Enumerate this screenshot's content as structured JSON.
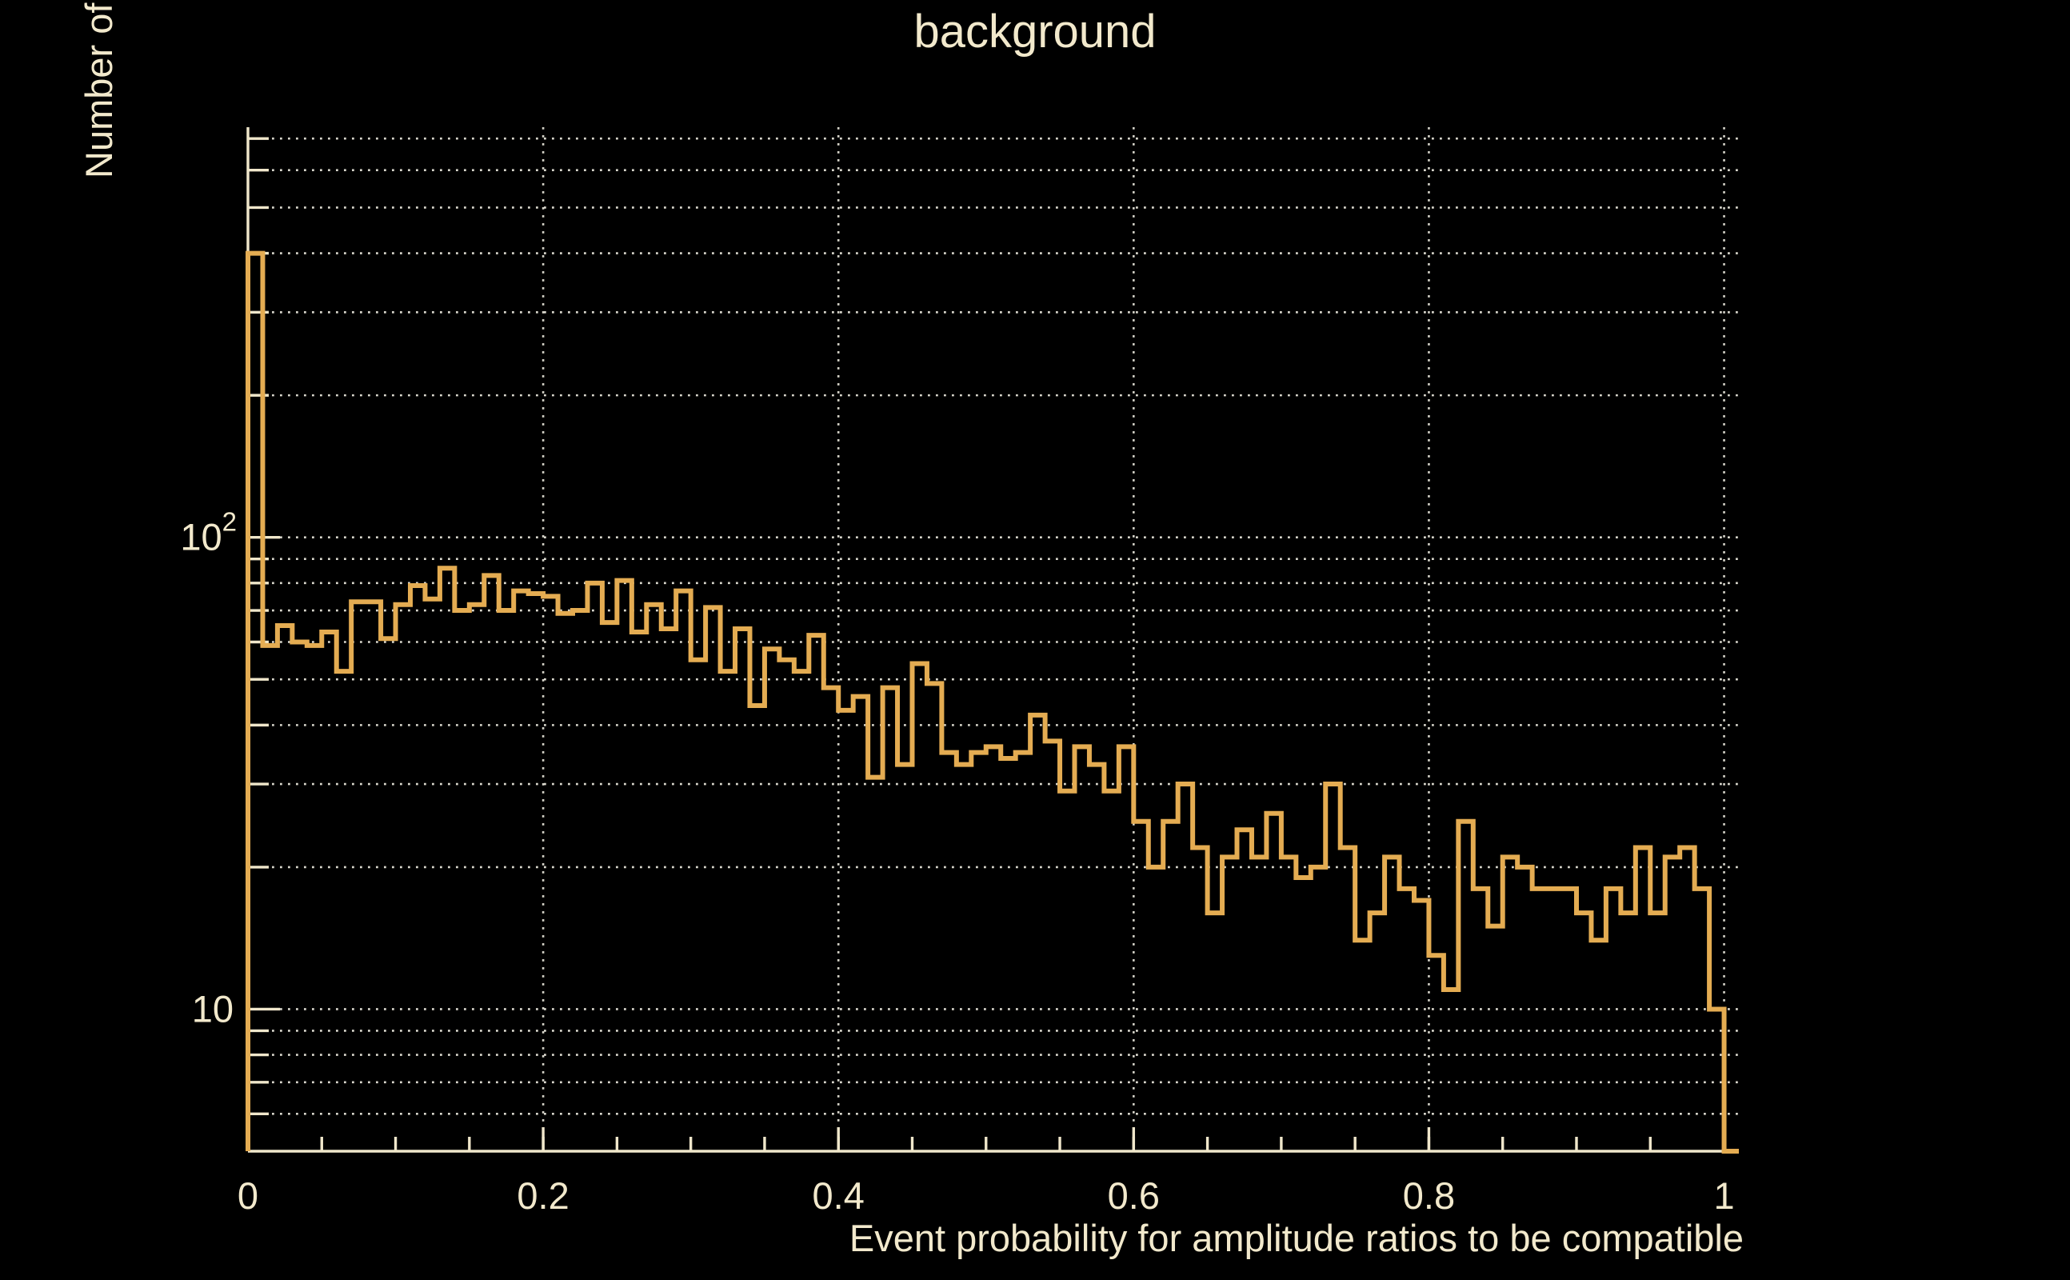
{
  "window": {
    "background_color": "#000000"
  },
  "header": {
    "title": "background"
  },
  "colors": {
    "background": "#000000",
    "text": "#F2E9CC",
    "axis": "#F0E7CB",
    "grid": "#EFEDE2",
    "histogram_line": "#E4AC52"
  },
  "chart_data": {
    "type": "bar",
    "subtype": "step-histogram",
    "title": "background",
    "xlabel": "Event probability for amplitude ratios to be compatible",
    "ylabel": "Number of events",
    "x_scale": "linear",
    "y_scale": "log",
    "xlim": [
      0,
      1.01
    ],
    "ylim": [
      5,
      740
    ],
    "grid": "on",
    "legend": "none",
    "bin_width": 0.01,
    "bin_start": 0.0,
    "n_bins": 101,
    "values": [
      400,
      59,
      65,
      60,
      59,
      63,
      52,
      73,
      73,
      61,
      72,
      79,
      74,
      86,
      70,
      72,
      83,
      70,
      77,
      76,
      75,
      69,
      70,
      80,
      66,
      81,
      63,
      72,
      64,
      77,
      55,
      71,
      52,
      64,
      44,
      58,
      55,
      52,
      62,
      48,
      43,
      46,
      31,
      48,
      33,
      54,
      49,
      35,
      33,
      35,
      36,
      34,
      35,
      42,
      37,
      29,
      36,
      33,
      29,
      36,
      25,
      20,
      25,
      30,
      22,
      16,
      21,
      24,
      21,
      26,
      21,
      19,
      20,
      30,
      22,
      14,
      16,
      21,
      18,
      17,
      13,
      11,
      25,
      18,
      15,
      21,
      20,
      18,
      18,
      18,
      16,
      14,
      18,
      16,
      22,
      16,
      21,
      22,
      18,
      10,
      0
    ],
    "x_major_ticks": [
      0,
      0.2,
      0.4,
      0.6,
      0.8,
      1
    ],
    "x_major_tick_labels": [
      "0",
      "0.2",
      "0.4",
      "0.6",
      "0.8",
      "1"
    ],
    "x_minor_tick_step": 0.05,
    "y_major_ticks": [
      10,
      100
    ],
    "y_major_tick_labels": [
      {
        "base": "10",
        "exponent": ""
      },
      {
        "base": "10",
        "exponent": "2"
      }
    ],
    "y_minor_ticks": [
      6,
      7,
      8,
      9,
      20,
      30,
      40,
      50,
      60,
      70,
      80,
      90,
      200,
      300,
      400,
      500,
      600,
      700
    ],
    "x_gridlines": [
      0,
      0.2,
      0.4,
      0.6,
      0.8,
      1.0
    ],
    "y_gridlines": [
      6,
      7,
      8,
      9,
      10,
      20,
      30,
      40,
      50,
      60,
      70,
      80,
      90,
      100,
      200,
      300,
      400,
      500,
      600,
      700
    ]
  }
}
